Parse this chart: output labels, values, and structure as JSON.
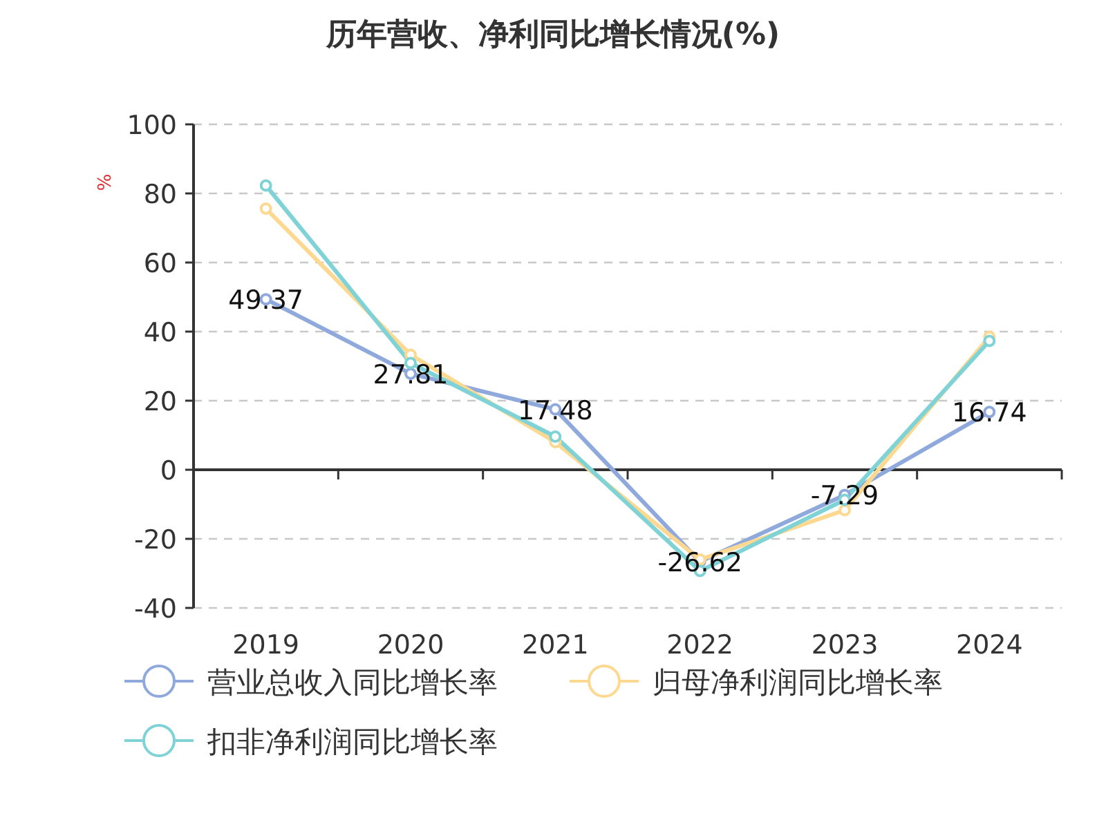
{
  "chart_data": {
    "type": "line",
    "title": "历年营收、净利同比增长情况(%)",
    "ylabel": "%",
    "categories": [
      "2019",
      "2020",
      "2021",
      "2022",
      "2023",
      "2024"
    ],
    "series": [
      {
        "name": "营业总收入同比增长率",
        "color": "#8fa9dc",
        "values": [
          49.37,
          27.81,
          17.48,
          -26.62,
          -7.29,
          16.74
        ],
        "value_labels": [
          "49.37",
          "27.81",
          "17.48",
          "-26.62",
          "-7.29",
          "16.74"
        ]
      },
      {
        "name": "归母净利润同比增长率",
        "color": "#fdd890",
        "values": [
          75.6,
          33.3,
          8,
          -26,
          -11.7,
          38.5
        ]
      },
      {
        "name": "扣非净利润同比增长率",
        "color": "#7fd3d6",
        "values": [
          82.3,
          30.9,
          9.6,
          -29.3,
          -8.7,
          37.3
        ]
      }
    ],
    "ylim": [
      -40,
      100
    ],
    "yticks": [
      -40,
      -20,
      0,
      20,
      40,
      60,
      80,
      100
    ],
    "grid": "y",
    "legend": "bottom",
    "marker": "circle"
  }
}
